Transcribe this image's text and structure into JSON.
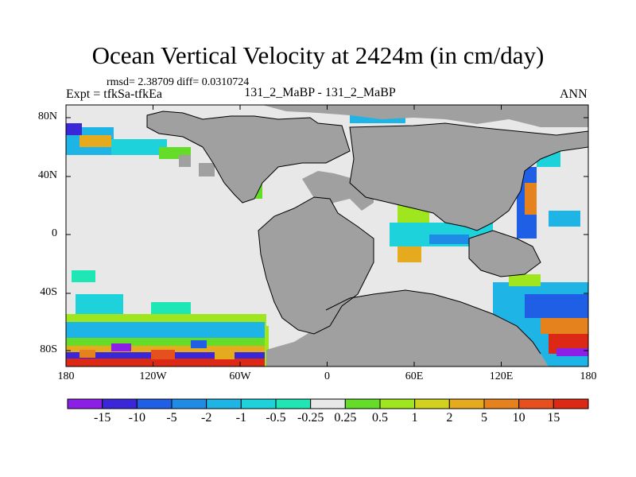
{
  "title": "Ocean Vertical Velocity at 2424m (in cm/day)",
  "stats_line": "rmsd= 2.38709 diff= 0.0310724",
  "experiment_line": "Expt = tfkSa-tfkEa",
  "center_label": "131_2_MaBP - 131_2_MaBP",
  "season_label": "ANN",
  "map": {
    "lat_ticks": [
      "80N",
      "40N",
      "0",
      "40S",
      "80S"
    ],
    "lon_ticks": [
      "180",
      "120W",
      "60W",
      "0",
      "60E",
      "120E",
      "180"
    ],
    "land_color": "#a0a0a0",
    "ocean_neutral_color": "#e8e8e8"
  },
  "colorbar": {
    "labels": [
      "-15",
      "-10",
      "-5",
      "-2",
      "-1",
      "-0.5",
      "-0.25",
      "0.25",
      "0.5",
      "1",
      "2",
      "5",
      "10",
      "15"
    ],
    "colors": [
      "#8c1ee6",
      "#3a28d8",
      "#1e5fe6",
      "#1e8ce6",
      "#1eb4e6",
      "#1ed2dc",
      "#1ee6b4",
      "#e8e8e8",
      "#64dc28",
      "#a0e61e",
      "#d2d21e",
      "#e6aa1e",
      "#e6821e",
      "#e6501e",
      "#dc2814"
    ]
  }
}
